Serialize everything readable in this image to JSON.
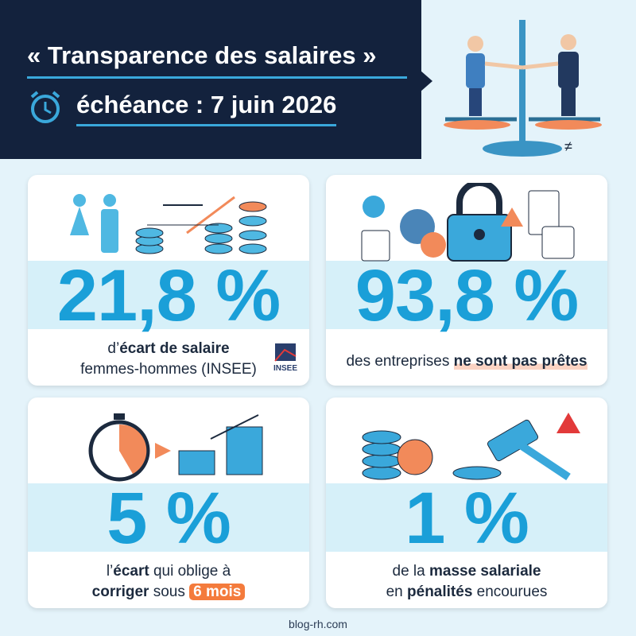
{
  "header": {
    "title": "« Transparence des salaires »",
    "deadline": "échéance : 7 juin 2026"
  },
  "cards": [
    {
      "stat": "21,8 %",
      "lines": [
        [
          {
            "text": "d’",
            "style": "normal"
          },
          {
            "text": "écart de salaire",
            "style": "bold"
          }
        ],
        [
          {
            "text": "femmes-hommes (INSEE)",
            "style": "normal"
          }
        ]
      ],
      "logo": "INSEE"
    },
    {
      "stat": "93,8 %",
      "lines": [
        [
          {
            "text": "des entreprises ",
            "style": "normal"
          },
          {
            "text": "ne sont pas prêtes",
            "style": "highlight"
          }
        ]
      ]
    },
    {
      "stat": "5 %",
      "lines": [
        [
          {
            "text": "l’",
            "style": "normal"
          },
          {
            "text": "écart",
            "style": "bold"
          },
          {
            "text": " qui oblige à",
            "style": "normal"
          }
        ],
        [
          {
            "text": "corriger",
            "style": "bold"
          },
          {
            "text": " sous ",
            "style": "normal"
          },
          {
            "text": "6 mois",
            "style": "badge"
          }
        ]
      ]
    },
    {
      "stat": "1 %",
      "lines": [
        [
          {
            "text": "de la ",
            "style": "normal"
          },
          {
            "text": "masse salariale",
            "style": "bold"
          }
        ],
        [
          {
            "text": "en ",
            "style": "normal"
          },
          {
            "text": "pénalités",
            "style": "bold"
          },
          {
            "text": " encourues",
            "style": "normal"
          }
        ]
      ]
    }
  ],
  "footer": "blog-rh.com"
}
